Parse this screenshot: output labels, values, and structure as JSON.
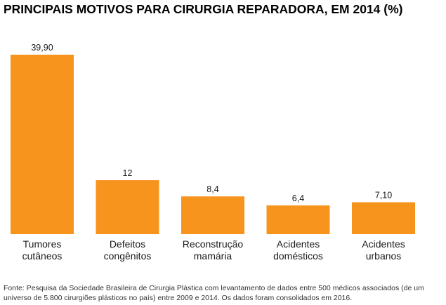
{
  "chart_data": {
    "type": "bar",
    "title": "PRINCIPAIS MOTIVOS PARA CIRURGIA REPARADORA, EM 2014 (%)",
    "categories": [
      [
        "Tumores",
        "cutâneos"
      ],
      [
        "Defeitos",
        "congênitos"
      ],
      [
        "Reconstrução",
        "mamária"
      ],
      [
        "Acidentes",
        "domésticos"
      ],
      [
        "Acidentes",
        "urbanos"
      ]
    ],
    "values": [
      39.9,
      12,
      8.4,
      6.4,
      7.1
    ],
    "value_labels": [
      "39,90",
      "12",
      "8,4",
      "6,4",
      "7,10"
    ],
    "xlabel": "",
    "ylabel": "",
    "ylim": [
      0,
      39.9
    ],
    "grid": false,
    "bar_color": "#F7941D"
  },
  "source_note": "Fonte: Pesquisa da Sociedade Brasileira de Cirurgia Plástica com levantamento de dados entre 500 médicos associados (de um universo de 5.800 cirurgiões plásticos no país) entre 2009 e 2014. Os dados foram consolidados em 2016."
}
